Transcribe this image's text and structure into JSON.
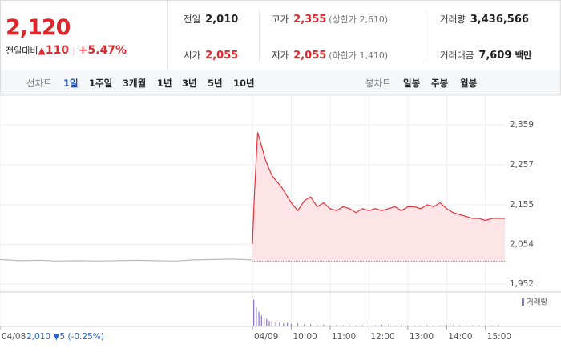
{
  "header": {
    "price": "2,120",
    "change_label": "전일대비",
    "change_arrow": "▲",
    "change": "110",
    "change_pct": "+5.47%",
    "stats": [
      {
        "label": "전일",
        "value": "2,010"
      },
      {
        "label": "고가",
        "value": "2,355",
        "note": "(상한가 2,610)",
        "red": true
      },
      {
        "label": "거래량",
        "value": "3,436,566"
      },
      {
        "label": "시가",
        "value": "2,055",
        "red": true
      },
      {
        "label": "저가",
        "value": "2,055",
        "note": "(하한가 1,410)",
        "red": true
      },
      {
        "label": "거래대금",
        "value": "7,609",
        "unit": "백만"
      }
    ]
  },
  "tabs": {
    "line_label": "선차트",
    "line_periods": [
      "1일",
      "1주일",
      "3개월",
      "1년",
      "3년",
      "5년",
      "10년"
    ],
    "active": 0,
    "candle_label": "봉차트",
    "candle_periods": [
      "일봉",
      "주봉",
      "월봉"
    ]
  },
  "chart_data": {
    "type": "line",
    "xlim": [
      0,
      780
    ],
    "ylim": [
      1936,
      2433
    ],
    "grid": true,
    "xticks": [
      {
        "value": 0,
        "label": "04/08"
      },
      {
        "value": 390,
        "label": "04/09"
      },
      {
        "value": 450,
        "label": "10:00"
      },
      {
        "value": 510,
        "label": "11:00"
      },
      {
        "value": 570,
        "label": "12:00"
      },
      {
        "value": 630,
        "label": "13:00"
      },
      {
        "value": 690,
        "label": "14:00"
      },
      {
        "value": 750,
        "label": "15:00"
      }
    ],
    "yticks": [
      {
        "value": 2359,
        "label": "2,359"
      },
      {
        "value": 2257,
        "label": "2,257"
      },
      {
        "value": 2155,
        "label": "2,155"
      },
      {
        "value": 2054,
        "label": "2,054"
      },
      {
        "value": 1952,
        "label": "1,952"
      }
    ],
    "baseline": 2010,
    "prev_summary": "2,010 ▼5 (-0.25%)",
    "series": [
      {
        "color": "#bbbbbb",
        "x": [
          0,
          30,
          60,
          90,
          120,
          150,
          180,
          210,
          240,
          270,
          300,
          330,
          360,
          390
        ],
        "values": [
          2015,
          2012,
          2013,
          2011,
          2012,
          2011,
          2012,
          2013,
          2012,
          2011,
          2014,
          2015,
          2016,
          2014
        ]
      },
      {
        "color": "#e8313a",
        "fill": "#fde4e6",
        "x": [
          390,
          393,
          398,
          405,
          410,
          420,
          435,
          450,
          460,
          470,
          480,
          490,
          500,
          510,
          520,
          530,
          540,
          550,
          560,
          570,
          580,
          590,
          600,
          610,
          620,
          630,
          640,
          650,
          660,
          670,
          680,
          690,
          700,
          710,
          720,
          730,
          740,
          750,
          760,
          770,
          780
        ],
        "values": [
          2055,
          2180,
          2340,
          2300,
          2270,
          2230,
          2200,
          2160,
          2140,
          2165,
          2175,
          2150,
          2160,
          2145,
          2140,
          2150,
          2145,
          2135,
          2145,
          2140,
          2145,
          2140,
          2145,
          2150,
          2140,
          2150,
          2150,
          2145,
          2155,
          2150,
          2160,
          2145,
          2135,
          2130,
          2125,
          2120,
          2120,
          2115,
          2120,
          2120,
          2120
        ]
      }
    ],
    "volume": {
      "name": "거래량",
      "color": "#8c74c4",
      "ylim": [
        0,
        250000
      ],
      "x": [
        392,
        396,
        400,
        404,
        408,
        412,
        416,
        420,
        426,
        432,
        438,
        444,
        450,
        460,
        470,
        480,
        490,
        500,
        510,
        520,
        530,
        540,
        550,
        560,
        570,
        580,
        590,
        600,
        610,
        620,
        630,
        640,
        650,
        660,
        670,
        680,
        690,
        700,
        710,
        720,
        730,
        740,
        750,
        760,
        770
      ],
      "values": [
        220000,
        160000,
        120000,
        90000,
        70000,
        60000,
        45000,
        40000,
        35000,
        30000,
        25000,
        30000,
        20000,
        25000,
        15000,
        18000,
        12000,
        15000,
        10000,
        12000,
        9000,
        11000,
        8000,
        10000,
        9000,
        8000,
        12000,
        9000,
        7000,
        10000,
        8000,
        9000,
        7000,
        11000,
        9000,
        8000,
        12000,
        10000,
        9000,
        8000,
        7000,
        9000,
        10000,
        8000,
        12000
      ]
    }
  }
}
